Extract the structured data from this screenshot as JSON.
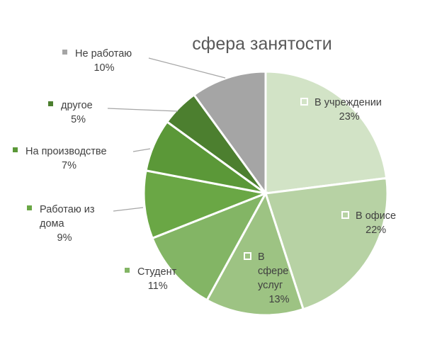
{
  "chart_data": {
    "type": "pie",
    "title": "сфера занятости",
    "slices": [
      {
        "label": [
          "В учреждении"
        ],
        "value": 23,
        "pct": "23%",
        "color": "#d2e3c6"
      },
      {
        "label": [
          "В офисе"
        ],
        "value": 22,
        "pct": "22%",
        "color": "#b7d2a4"
      },
      {
        "label": [
          "В",
          "сфере",
          "услуг"
        ],
        "value": 13,
        "pct": "13%",
        "color": "#9dc383"
      },
      {
        "label": [
          "Студент"
        ],
        "value": 11,
        "pct": "11%",
        "color": "#83b565"
      },
      {
        "label": [
          "Работаю из",
          "дома"
        ],
        "value": 9,
        "pct": "9%",
        "color": "#6aa745"
      },
      {
        "label": [
          "На производстве"
        ],
        "value": 7,
        "pct": "7%",
        "color": "#5b9838"
      },
      {
        "label": [
          "другое"
        ],
        "value": 5,
        "pct": "5%",
        "color": "#4c7f2f"
      },
      {
        "label": [
          "Не работаю"
        ],
        "value": 10,
        "pct": "10%",
        "color": "#a5a5a5"
      }
    ],
    "legend": "none",
    "data_labels": "category and percentage"
  }
}
